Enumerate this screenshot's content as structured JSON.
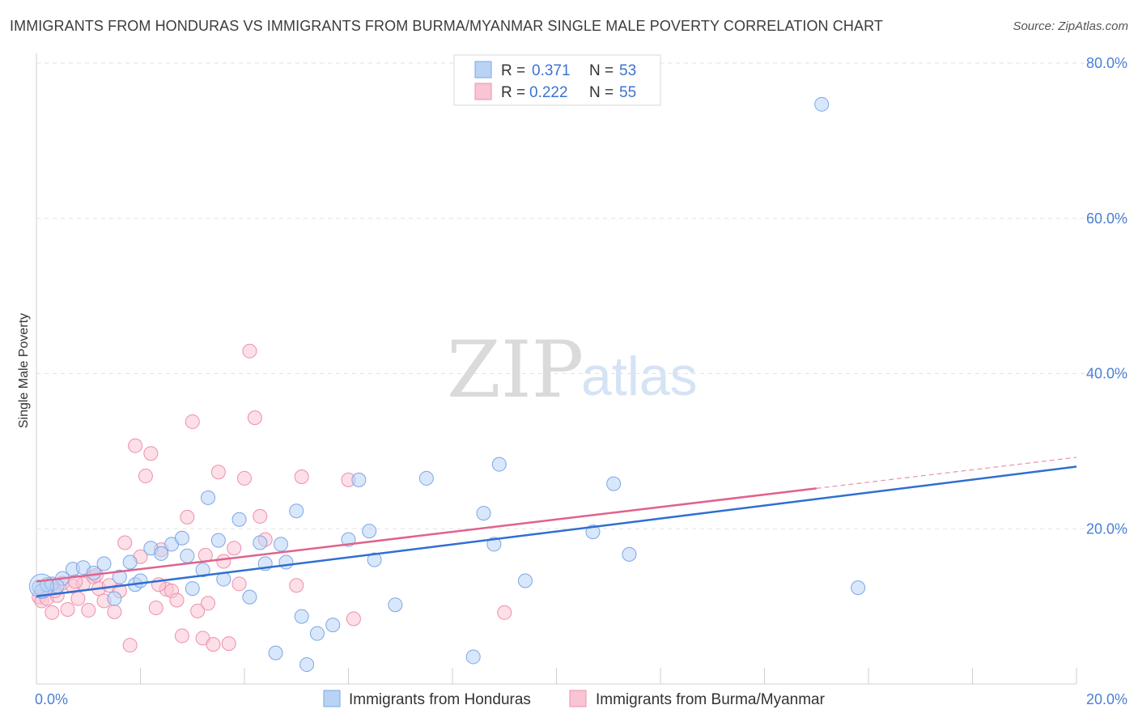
{
  "title": "IMMIGRANTS FROM HONDURAS VS IMMIGRANTS FROM BURMA/MYANMAR SINGLE MALE POVERTY CORRELATION CHART",
  "source": "Source: ZipAtlas.com",
  "watermark": {
    "zip": "ZIP",
    "atlas": "atlas"
  },
  "legend_top": {
    "r_label": "R =",
    "n_label": "N =",
    "rows": [
      {
        "r": "0.371",
        "n": "53"
      },
      {
        "r": "0.222",
        "n": "55"
      }
    ]
  },
  "colors": {
    "honduras_fill": "#b9d3f5",
    "honduras_stroke": "#7aa7e6",
    "honduras_line": "#2f6fd0",
    "burma_fill": "#f9c4d3",
    "burma_stroke": "#ee8fab",
    "burma_line": "#e0628d",
    "grid": "#e3e3e3",
    "tick_text": "#4a7fd6"
  },
  "chart_data": {
    "type": "scatter",
    "xlabel": "",
    "ylabel": "Single Male Poverty",
    "xlim": [
      0,
      20
    ],
    "ylim": [
      0,
      80
    ],
    "x_tick_labels": [
      "0.0%",
      "20.0%"
    ],
    "y_tick_labels": [
      "20.0%",
      "40.0%",
      "60.0%",
      "80.0%"
    ],
    "y_ticks": [
      20,
      40,
      60,
      80
    ],
    "grid": true,
    "legend_position": "top-center",
    "series": [
      {
        "name": "Immigrants from Honduras",
        "R": 0.371,
        "N": 53,
        "trend": {
          "x": [
            0,
            20
          ],
          "y": [
            11.3,
            28.0
          ]
        },
        "points": [
          [
            0.05,
            12.5
          ],
          [
            0.1,
            12.0
          ],
          [
            0.2,
            12.8
          ],
          [
            0.3,
            12.9
          ],
          [
            0.5,
            13.6
          ],
          [
            0.7,
            14.8
          ],
          [
            0.9,
            15.0
          ],
          [
            1.1,
            14.3
          ],
          [
            1.3,
            15.5
          ],
          [
            1.5,
            11.0
          ],
          [
            1.6,
            13.8
          ],
          [
            1.8,
            15.7
          ],
          [
            1.9,
            12.8
          ],
          [
            2.0,
            13.3
          ],
          [
            2.2,
            17.5
          ],
          [
            2.4,
            16.8
          ],
          [
            2.6,
            18.0
          ],
          [
            2.8,
            18.8
          ],
          [
            2.9,
            16.5
          ],
          [
            3.0,
            12.3
          ],
          [
            3.2,
            14.7
          ],
          [
            3.3,
            24.0
          ],
          [
            3.5,
            18.5
          ],
          [
            3.6,
            13.5
          ],
          [
            3.9,
            21.2
          ],
          [
            4.1,
            11.2
          ],
          [
            4.3,
            18.2
          ],
          [
            4.4,
            15.5
          ],
          [
            4.6,
            4.0
          ],
          [
            4.7,
            18.0
          ],
          [
            4.8,
            15.7
          ],
          [
            5.0,
            22.3
          ],
          [
            5.1,
            8.7
          ],
          [
            5.2,
            2.5
          ],
          [
            5.4,
            6.5
          ],
          [
            5.7,
            7.6
          ],
          [
            6.0,
            18.6
          ],
          [
            6.2,
            26.3
          ],
          [
            6.4,
            19.7
          ],
          [
            6.5,
            16.0
          ],
          [
            6.9,
            10.2
          ],
          [
            7.5,
            26.5
          ],
          [
            8.4,
            3.5
          ],
          [
            8.6,
            22.0
          ],
          [
            8.8,
            18.0
          ],
          [
            8.9,
            28.3
          ],
          [
            9.4,
            13.3
          ],
          [
            10.7,
            19.6
          ],
          [
            11.1,
            25.8
          ],
          [
            11.4,
            16.7
          ],
          [
            15.1,
            74.7
          ],
          [
            15.8,
            12.4
          ],
          [
            0.4,
            12.6
          ]
        ]
      },
      {
        "name": "Immigrants from Burma/Myanmar",
        "R": 0.222,
        "N": 55,
        "trend": {
          "x": [
            0,
            15
          ],
          "y": [
            13.2,
            25.2
          ]
        },
        "trend_dashed": {
          "x": [
            15,
            20
          ],
          "y": [
            25.2,
            29.2
          ]
        },
        "points": [
          [
            0.05,
            11.2
          ],
          [
            0.1,
            10.7
          ],
          [
            0.2,
            11.0
          ],
          [
            0.3,
            9.2
          ],
          [
            0.4,
            11.4
          ],
          [
            0.5,
            13.0
          ],
          [
            0.6,
            9.6
          ],
          [
            0.7,
            12.6
          ],
          [
            0.8,
            11.0
          ],
          [
            0.9,
            12.9
          ],
          [
            1.0,
            9.5
          ],
          [
            1.1,
            13.8
          ],
          [
            1.2,
            12.3
          ],
          [
            1.3,
            10.7
          ],
          [
            1.4,
            12.7
          ],
          [
            1.5,
            9.3
          ],
          [
            1.6,
            12.0
          ],
          [
            1.7,
            18.2
          ],
          [
            1.8,
            5.0
          ],
          [
            1.9,
            30.7
          ],
          [
            2.0,
            16.4
          ],
          [
            2.1,
            26.8
          ],
          [
            2.2,
            29.7
          ],
          [
            2.3,
            9.8
          ],
          [
            2.4,
            17.3
          ],
          [
            2.5,
            12.2
          ],
          [
            2.6,
            12.0
          ],
          [
            2.7,
            10.8
          ],
          [
            2.8,
            6.2
          ],
          [
            2.9,
            21.5
          ],
          [
            3.0,
            33.8
          ],
          [
            3.1,
            9.4
          ],
          [
            3.2,
            5.9
          ],
          [
            3.3,
            10.4
          ],
          [
            3.4,
            5.1
          ],
          [
            3.5,
            27.3
          ],
          [
            3.6,
            15.8
          ],
          [
            3.7,
            5.2
          ],
          [
            3.8,
            17.5
          ],
          [
            3.9,
            12.9
          ],
          [
            4.0,
            26.5
          ],
          [
            4.1,
            42.9
          ],
          [
            4.2,
            34.3
          ],
          [
            4.3,
            21.6
          ],
          [
            4.4,
            18.6
          ],
          [
            5.0,
            12.7
          ],
          [
            5.1,
            26.7
          ],
          [
            6.0,
            26.3
          ],
          [
            6.1,
            8.4
          ],
          [
            9.0,
            9.2
          ],
          [
            1.15,
            14.0
          ],
          [
            0.35,
            12.0
          ],
          [
            2.35,
            12.8
          ],
          [
            3.25,
            16.6
          ],
          [
            0.75,
            13.2
          ]
        ]
      }
    ]
  },
  "legend_bottom": [
    {
      "label": "Immigrants from Honduras"
    },
    {
      "label": "Immigrants from Burma/Myanmar"
    }
  ]
}
